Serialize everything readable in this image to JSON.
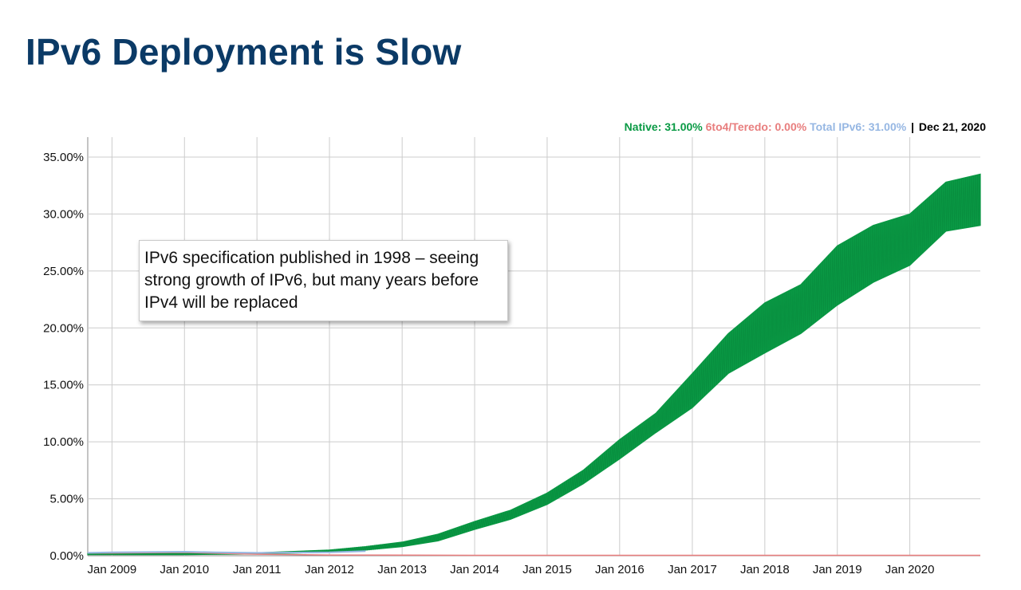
{
  "slide": {
    "title": "IPv6 Deployment is Slow"
  },
  "legend": {
    "native": "Native: 31.00%",
    "teredo": "6to4/Teredo: 0.00%",
    "total": "Total IPv6: 31.00%",
    "separator": "|",
    "date": "Dec 21, 2020"
  },
  "callout": {
    "text": "IPv6 specification published in 1998 – seeing strong growth of IPv6, but many years before IPv4 will be replaced"
  },
  "colors": {
    "native": "#0a9a45",
    "teredo": "#e87e7e",
    "total": "#96b7e3",
    "title": "#0b3a66",
    "grid": "#cccccc"
  },
  "chart_data": {
    "type": "line",
    "title": "",
    "xlabel": "",
    "ylabel": "",
    "grid": true,
    "legend_position": "top-right",
    "x_range": [
      "2008-09-01",
      "2020-12-21"
    ],
    "ylim": [
      0,
      0.35
    ],
    "y_ticks": [
      "0.00%",
      "5.00%",
      "10.00%",
      "15.00%",
      "20.00%",
      "25.00%",
      "30.00%",
      "35.00%"
    ],
    "y_tick_values": [
      0,
      0.05,
      0.1,
      0.15,
      0.2,
      0.25,
      0.3,
      0.35
    ],
    "x_ticks": [
      "Jan 2009",
      "Jan 2010",
      "Jan 2011",
      "Jan 2012",
      "Jan 2013",
      "Jan 2014",
      "Jan 2015",
      "Jan 2016",
      "Jan 2017",
      "Jan 2018",
      "Jan 2019",
      "Jan 2020"
    ],
    "x_tick_values": [
      "2009-01-01",
      "2010-01-01",
      "2011-01-01",
      "2012-01-01",
      "2013-01-01",
      "2014-01-01",
      "2015-01-01",
      "2016-01-01",
      "2017-01-01",
      "2018-01-01",
      "2019-01-01",
      "2020-01-01"
    ],
    "series": [
      {
        "name": "Native",
        "x": [
          "2008-09-01",
          "2009-01-01",
          "2010-01-01",
          "2011-01-01",
          "2012-01-01",
          "2012-07-01",
          "2013-01-01",
          "2013-07-01",
          "2014-01-01",
          "2014-07-01",
          "2015-01-01",
          "2015-07-01",
          "2016-01-01",
          "2016-07-01",
          "2017-01-01",
          "2017-07-01",
          "2018-01-01",
          "2018-07-01",
          "2019-01-01",
          "2019-07-01",
          "2020-01-01",
          "2020-07-01",
          "2020-12-21"
        ],
        "low": [
          0.001,
          0.001,
          0.001,
          0.0015,
          0.003,
          0.005,
          0.008,
          0.013,
          0.023,
          0.032,
          0.045,
          0.063,
          0.085,
          0.108,
          0.13,
          0.16,
          0.178,
          0.195,
          0.22,
          0.24,
          0.255,
          0.285,
          0.29
        ],
        "high": [
          0.002,
          0.002,
          0.002,
          0.0025,
          0.005,
          0.008,
          0.012,
          0.019,
          0.03,
          0.04,
          0.055,
          0.075,
          0.102,
          0.125,
          0.16,
          0.195,
          0.222,
          0.238,
          0.272,
          0.29,
          0.3,
          0.328,
          0.335
        ]
      },
      {
        "name": "6to4/Teredo",
        "x": [
          "2008-09-01",
          "2009-01-01",
          "2010-01-01",
          "2011-01-01",
          "2012-01-01",
          "2014-01-01",
          "2016-01-01",
          "2018-01-01",
          "2020-12-21"
        ],
        "values": [
          0.002,
          0.002,
          0.0025,
          0.001,
          0.0003,
          0,
          0,
          0,
          0
        ]
      },
      {
        "name": "Total IPv6",
        "x": [
          "2008-09-01",
          "2009-01-01",
          "2010-01-01",
          "2010-06-01",
          "2011-01-01",
          "2012-01-01",
          "2012-07-01"
        ],
        "values": [
          0.0025,
          0.003,
          0.0035,
          0.003,
          0.0025,
          0.003,
          0.004
        ]
      }
    ]
  }
}
